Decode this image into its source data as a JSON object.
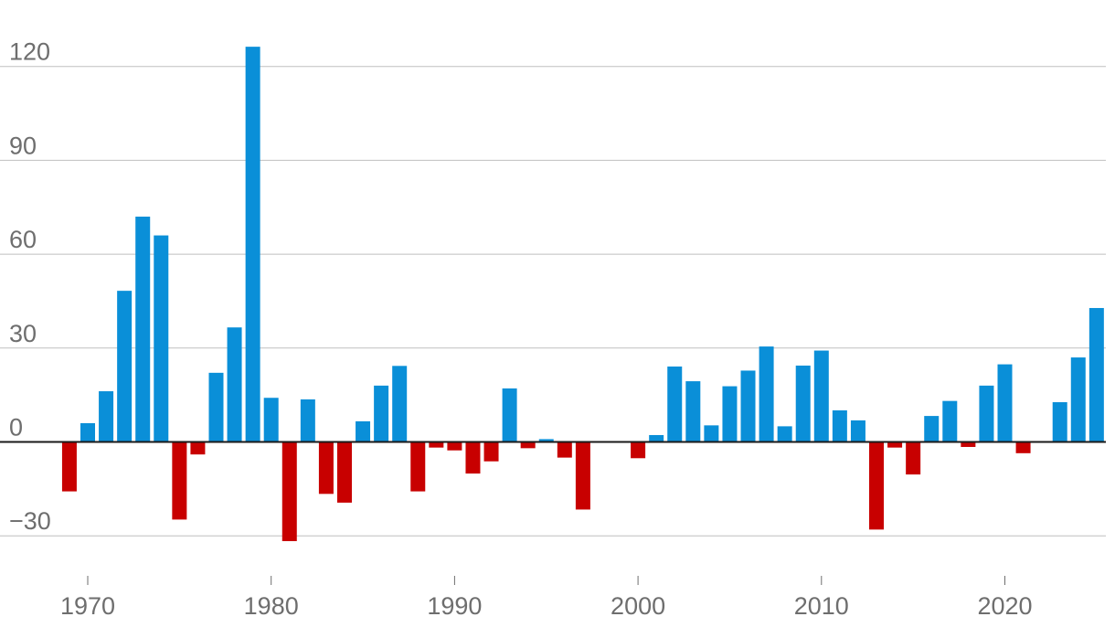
{
  "chart_data": {
    "type": "bar",
    "title": "",
    "xlabel": "",
    "ylabel": "",
    "ylim": [
      -40,
      130
    ],
    "y_ticks": [
      120,
      90,
      60,
      30,
      0,
      -30
    ],
    "y_tick_labels": [
      "120",
      "90",
      "60",
      "30",
      "0",
      "−30"
    ],
    "x_ticks": [
      1970,
      1980,
      1990,
      2000,
      2010,
      2020
    ],
    "x_tick_labels": [
      "1970",
      "1980",
      "1990",
      "2000",
      "2010",
      "2020"
    ],
    "grid": true,
    "colors": {
      "positive": "#0a8fd8",
      "negative": "#c80000"
    },
    "years": [
      1969,
      1970,
      1971,
      1972,
      1973,
      1974,
      1975,
      1976,
      1977,
      1978,
      1979,
      1980,
      1981,
      1982,
      1983,
      1984,
      1985,
      1986,
      1987,
      1988,
      1989,
      1990,
      1991,
      1992,
      1993,
      1994,
      1995,
      1996,
      1997,
      1998,
      1999,
      2000,
      2001,
      2002,
      2003,
      2004,
      2005,
      2006,
      2007,
      2008,
      2009,
      2010,
      2011,
      2012,
      2013,
      2014,
      2015,
      2016,
      2017,
      2018,
      2019,
      2020,
      2021,
      2022,
      2023,
      2024,
      2025
    ],
    "values": [
      -15.8,
      6.0,
      16.2,
      48.3,
      72.0,
      66.0,
      -24.8,
      -4.0,
      22.1,
      36.6,
      126.3,
      14.1,
      -31.7,
      13.6,
      -16.6,
      -19.4,
      6.6,
      18.0,
      24.3,
      -15.8,
      -1.8,
      -2.7,
      -10.1,
      -6.2,
      17.1,
      -2.0,
      0.9,
      -5.0,
      -21.6,
      0.0,
      0.0,
      -5.2,
      2.2,
      24.1,
      19.4,
      5.3,
      17.8,
      22.8,
      30.5,
      5.0,
      24.4,
      29.2,
      10.1,
      6.9,
      -28.0,
      -1.8,
      -10.4,
      8.3,
      13.1,
      -1.6,
      18.0,
      24.8,
      -3.6,
      0.0,
      12.7,
      27.0,
      42.8
    ]
  }
}
